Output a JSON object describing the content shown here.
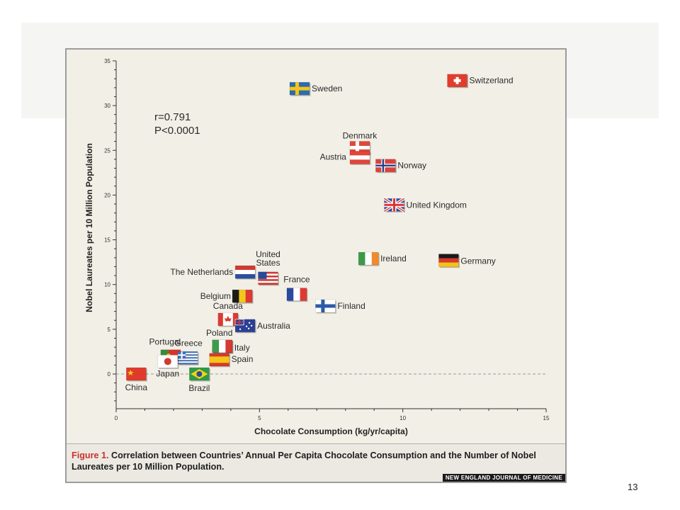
{
  "chart_data": {
    "type": "scatter",
    "xlabel": "Chocolate Consumption (kg/yr/capita)",
    "ylabel": "Nobel Laureates per 10 Million Population",
    "xlim": [
      0,
      15
    ],
    "ylim": [
      -3,
      35
    ],
    "xticks": [
      "0",
      "5",
      "10",
      "15"
    ],
    "yticks": [
      "0",
      "5",
      "10",
      "15",
      "20",
      "25",
      "30",
      "35"
    ],
    "annotations": [
      "r=0.791",
      "P<0.0001"
    ],
    "reference_line": {
      "y": 0,
      "style": "dashed"
    },
    "grid": false,
    "marker": "country flag",
    "points": [
      {
        "label": "Switzerland",
        "x": 11.9,
        "y": 32.8,
        "flag": "switzerland"
      },
      {
        "label": "Sweden",
        "x": 6.4,
        "y": 31.9,
        "flag": "sweden"
      },
      {
        "label": "Denmark",
        "x": 8.5,
        "y": 25.3,
        "flag": "denmark"
      },
      {
        "label": "Austria",
        "x": 8.5,
        "y": 24.2,
        "flag": "austria"
      },
      {
        "label": "Norway",
        "x": 9.4,
        "y": 23.3,
        "flag": "norway"
      },
      {
        "label": "United Kingdom",
        "x": 9.7,
        "y": 18.9,
        "flag": "uk"
      },
      {
        "label": "Ireland",
        "x": 8.8,
        "y": 12.9,
        "flag": "ireland"
      },
      {
        "label": "Germany",
        "x": 11.6,
        "y": 12.7,
        "flag": "germany"
      },
      {
        "label": "United States",
        "x": 5.3,
        "y": 10.7,
        "flag": "usa"
      },
      {
        "label": "The Netherlands",
        "x": 4.5,
        "y": 11.4,
        "flag": "netherlands"
      },
      {
        "label": "France",
        "x": 6.3,
        "y": 8.9,
        "flag": "france"
      },
      {
        "label": "Belgium",
        "x": 4.4,
        "y": 8.7,
        "flag": "belgium"
      },
      {
        "label": "Finland",
        "x": 7.3,
        "y": 7.6,
        "flag": "finland"
      },
      {
        "label": "Canada",
        "x": 3.9,
        "y": 6.1,
        "flag": "canada"
      },
      {
        "label": "Australia",
        "x": 4.5,
        "y": 5.4,
        "flag": "australia"
      },
      {
        "label": "Poland",
        "x": 3.7,
        "y": 3.1,
        "flag": "poland"
      },
      {
        "label": "Italy",
        "x": 3.7,
        "y": 3.1,
        "flag": "italy"
      },
      {
        "label": "Spain",
        "x": 3.6,
        "y": 1.6,
        "flag": "spain"
      },
      {
        "label": "Portugal",
        "x": 1.9,
        "y": 2.0,
        "flag": "portugal"
      },
      {
        "label": "Greece",
        "x": 2.5,
        "y": 1.8,
        "flag": "greece"
      },
      {
        "label": "Japan",
        "x": 1.8,
        "y": 1.4,
        "flag": "japan"
      },
      {
        "label": "Brazil",
        "x": 2.9,
        "y": 0.0,
        "flag": "brazil"
      },
      {
        "label": "China",
        "x": 0.7,
        "y": 0.0,
        "flag": "china"
      }
    ]
  },
  "caption": {
    "figure_label": "Figure 1.",
    "text": "Correlation between Countries’ Annual Per Capita Chocolate Consumption and the Number of Nobel Laureates per 10 Million Population."
  },
  "journal_name": "NEW ENGLAND JOURNAL OF MEDICINE",
  "page_number": "13"
}
